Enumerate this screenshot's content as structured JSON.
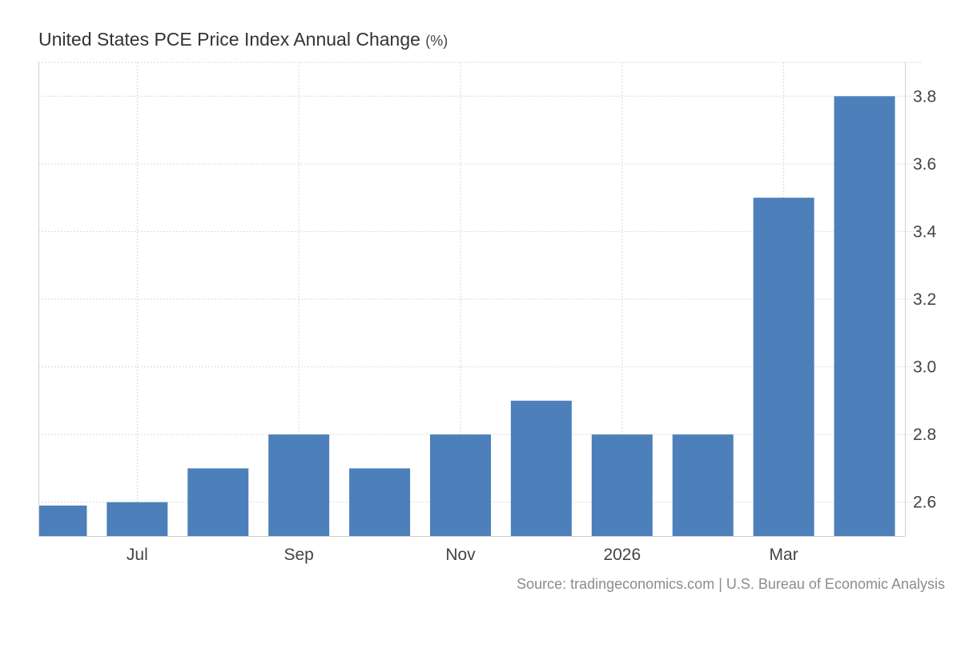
{
  "chart_data": {
    "type": "bar",
    "title": "United States PCE Price Index Annual Change",
    "unit": "(%)",
    "categories": [
      "2025-06",
      "2025-07",
      "2025-08",
      "2025-09",
      "2025-10",
      "2025-11",
      "2025-12",
      "2026-01",
      "2026-02",
      "2026-03",
      "2026-04"
    ],
    "values": [
      2.59,
      2.6,
      2.7,
      2.8,
      2.7,
      2.8,
      2.9,
      2.8,
      2.8,
      3.5,
      3.8
    ],
    "x_tick_labels": [
      {
        "label": "Jul",
        "category": "2025-07"
      },
      {
        "label": "Sep",
        "category": "2025-09"
      },
      {
        "label": "Nov",
        "category": "2025-11"
      },
      {
        "label": "2026",
        "category": "2026-01"
      },
      {
        "label": "Mar",
        "category": "2026-03"
      }
    ],
    "y_ticks": [
      2.6,
      2.8,
      3.0,
      3.2,
      3.4,
      3.6,
      3.8
    ],
    "y_tick_labels": [
      "2.6",
      "2.8",
      "3.0",
      "3.2",
      "3.4",
      "3.6",
      "3.8"
    ],
    "ylim": [
      2.5,
      3.9
    ],
    "y_axis_side": "right",
    "grid": true,
    "bar_color": "#4d80bb",
    "grid_color": "#d9d9d9"
  },
  "source": "Source: tradingeconomics.com | U.S. Bureau of Economic Analysis"
}
